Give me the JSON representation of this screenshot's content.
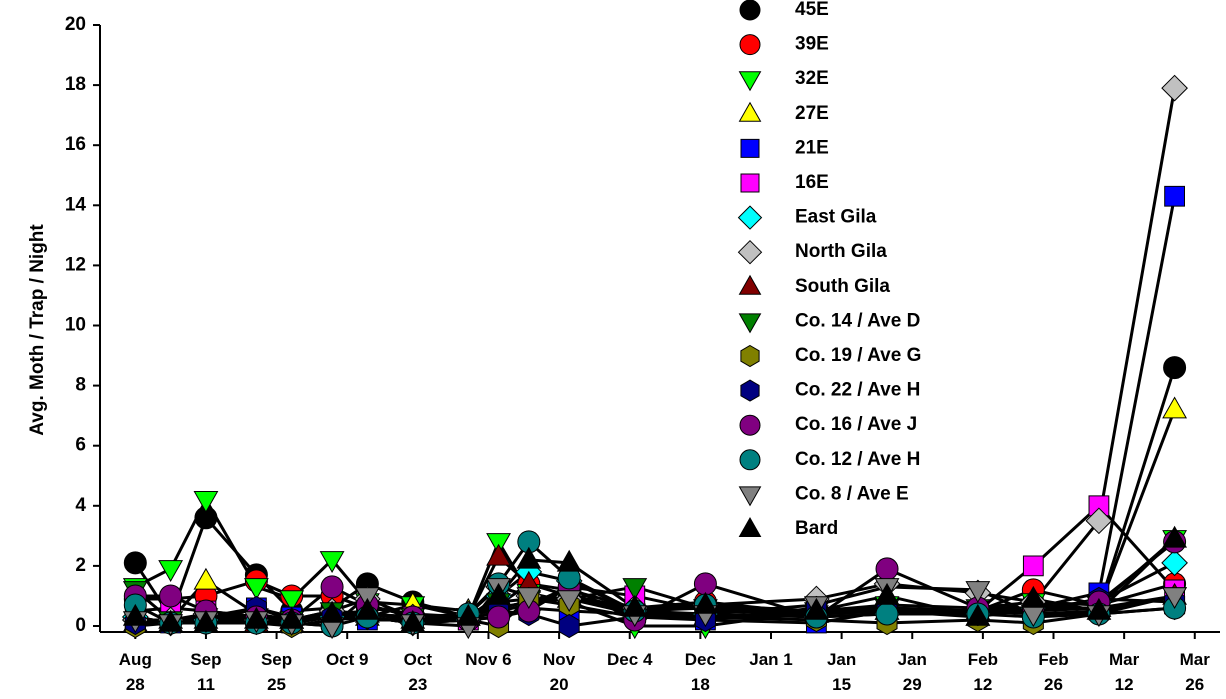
{
  "chart_data": {
    "type": "line",
    "y_label": "Avg. Moth / Trap / Night",
    "x": [
      "08-28",
      "09-04",
      "09-11",
      "09-21",
      "09-28",
      "10-06",
      "10-13",
      "10-22",
      "11-02",
      "11-08",
      "11-14",
      "11-22",
      "12-05",
      "12-19",
      "01-10",
      "01-24",
      "02-11",
      "02-22",
      "03-07",
      "03-22"
    ],
    "xlim": [
      "08-21",
      "03-31"
    ],
    "xticks": [
      {
        "value": "08-28",
        "label": "Aug 28"
      },
      {
        "value": "09-11",
        "label": "Sep 11"
      },
      {
        "value": "09-25",
        "label": "Sep 25"
      },
      {
        "value": "10-09",
        "label": "Oct 9"
      },
      {
        "value": "10-23",
        "label": "Oct 23"
      },
      {
        "value": "11-06",
        "label": "Nov 6"
      },
      {
        "value": "11-20",
        "label": "Nov 20"
      },
      {
        "value": "12-04",
        "label": "Dec 4"
      },
      {
        "value": "12-18",
        "label": "Dec 18"
      },
      {
        "value": "01-01",
        "label": "Jan 1"
      },
      {
        "value": "01-15",
        "label": "Jan 15"
      },
      {
        "value": "01-29",
        "label": "Jan 29"
      },
      {
        "value": "02-12",
        "label": "Feb 12"
      },
      {
        "value": "02-26",
        "label": "Feb 26"
      },
      {
        "value": "03-12",
        "label": "Mar 12"
      },
      {
        "value": "03-26",
        "label": "Mar 26"
      }
    ],
    "ylim": [
      -0.2,
      20
    ],
    "yticks": [
      0,
      2,
      4,
      6,
      8,
      10,
      12,
      14,
      16,
      18,
      20
    ],
    "line_color": "#000000",
    "series": [
      {
        "name": "45E",
        "color": "#000000",
        "marker": "circle",
        "values": [
          2.1,
          0.3,
          3.6,
          1.7,
          0.5,
          0.6,
          1.4,
          0.8,
          0.3,
          0.6,
          0.8,
          0.9,
          0.5,
          0.6,
          0.5,
          0.6,
          0.4,
          0.5,
          0.6,
          8.6
        ]
      },
      {
        "name": "39E",
        "color": "#ff0000",
        "marker": "circle",
        "values": [
          0.9,
          0.9,
          1.0,
          1.5,
          1.0,
          1.0,
          0.6,
          0.4,
          0.3,
          0.7,
          1.4,
          1.2,
          0.6,
          0.8,
          0.4,
          0.6,
          0.5,
          1.2,
          0.7,
          1.4
        ]
      },
      {
        "name": "32E",
        "color": "#00ff00",
        "marker": "triangle-down",
        "values": [
          1.3,
          1.9,
          4.2,
          1.3,
          0.9,
          2.2,
          0.8,
          0.7,
          0.3,
          2.8,
          1.1,
          0.8,
          0.0,
          0.0,
          0.5,
          0.7,
          0.6,
          0.8,
          0.7,
          2.9
        ]
      },
      {
        "name": "27E",
        "color": "#ffff00",
        "marker": "triangle-up",
        "values": [
          0.1,
          0.2,
          1.5,
          0.4,
          0.2,
          0.5,
          0.3,
          0.7,
          0.5,
          0.6,
          0.8,
          0.9,
          0.5,
          0.3,
          0.4,
          0.5,
          0.3,
          0.6,
          0.6,
          7.2
        ]
      },
      {
        "name": "21E",
        "color": "#0000ff",
        "marker": "square",
        "values": [
          0.2,
          0.1,
          0.3,
          0.6,
          0.3,
          0.3,
          0.2,
          0.2,
          0.2,
          0.3,
          0.6,
          0.5,
          0.4,
          0.2,
          0.1,
          0.5,
          0.4,
          0.6,
          1.1,
          14.3
        ]
      },
      {
        "name": "16E",
        "color": "#ff00ff",
        "marker": "square",
        "values": [
          0.5,
          0.6,
          0.5,
          0.3,
          0.1,
          0.4,
          0.4,
          0.3,
          0.2,
          0.5,
          0.7,
          1.3,
          1.0,
          0.5,
          0.4,
          0.5,
          0.5,
          2.0,
          4.0,
          1.2
        ]
      },
      {
        "name": "East Gila",
        "color": "#00ffff",
        "marker": "diamond",
        "values": [
          0.3,
          0.1,
          0.2,
          0.2,
          0.1,
          0.3,
          0.3,
          0.1,
          0.2,
          1.0,
          1.8,
          1.5,
          0.5,
          0.4,
          0.3,
          0.4,
          0.4,
          0.6,
          0.8,
          2.1
        ]
      },
      {
        "name": "North Gila",
        "color": "#c0c0c0",
        "marker": "diamond",
        "values": [
          0.2,
          0.2,
          0.4,
          0.2,
          0.1,
          0.5,
          0.9,
          0.3,
          0.4,
          1.3,
          1.0,
          0.9,
          0.6,
          0.7,
          0.9,
          1.4,
          1.1,
          0.8,
          3.5,
          17.9
        ]
      },
      {
        "name": "South Gila",
        "color": "#800000",
        "marker": "triangle-up",
        "values": [
          0.1,
          0.1,
          0.2,
          0.1,
          0.1,
          0.4,
          0.4,
          0.2,
          0.3,
          2.3,
          1.4,
          1.0,
          0.6,
          0.6,
          0.4,
          0.5,
          0.5,
          0.6,
          0.6,
          1.0
        ]
      },
      {
        "name": "Co. 14 / Ave D",
        "color": "#008000",
        "marker": "triangle-down",
        "values": [
          1.2,
          0.2,
          0.3,
          0.3,
          0.2,
          0.5,
          0.4,
          0.3,
          0.3,
          0.8,
          0.9,
          0.9,
          1.3,
          0.6,
          0.4,
          0.6,
          0.5,
          0.4,
          0.5,
          1.0
        ]
      },
      {
        "name": "Co. 19 / Ave G",
        "color": "#808000",
        "marker": "hexagon",
        "values": [
          0.0,
          0.1,
          0.1,
          0.1,
          0.0,
          0.2,
          0.3,
          0.1,
          0.2,
          0.0,
          0.9,
          0.7,
          0.3,
          0.3,
          0.2,
          0.1,
          0.2,
          0.1,
          0.4,
          0.6
        ]
      },
      {
        "name": "Co. 22 / Ave H",
        "color": "#000080",
        "marker": "hexagon",
        "values": [
          0.1,
          0.1,
          0.1,
          0.6,
          0.2,
          0.3,
          0.3,
          0.1,
          0.2,
          0.5,
          0.4,
          0.0,
          0.3,
          0.2,
          0.6,
          0.5,
          0.4,
          0.5,
          0.9,
          0.8
        ]
      },
      {
        "name": "Co. 16 / Ave J",
        "color": "#800080",
        "marker": "circle",
        "values": [
          1.0,
          1.0,
          0.5,
          0.3,
          0.2,
          1.3,
          0.7,
          0.3,
          0.2,
          0.3,
          0.5,
          1.3,
          0.2,
          1.4,
          0.3,
          1.9,
          0.6,
          0.6,
          0.8,
          2.8
        ]
      },
      {
        "name": "Co. 12 / Ave H",
        "color": "#008080",
        "marker": "circle",
        "values": [
          0.7,
          0.1,
          0.1,
          0.1,
          0.1,
          0.0,
          0.3,
          0.1,
          0.4,
          1.4,
          2.8,
          1.6,
          0.5,
          0.7,
          0.3,
          0.4,
          0.4,
          0.3,
          0.4,
          0.6
        ]
      },
      {
        "name": "Co. 8 / Ave E",
        "color": "#808080",
        "marker": "triangle-down",
        "values": [
          0.2,
          0.1,
          0.2,
          0.2,
          0.1,
          0.0,
          1.0,
          0.1,
          0.0,
          1.3,
          1.0,
          0.9,
          0.4,
          0.4,
          0.7,
          1.3,
          1.2,
          0.4,
          0.4,
          1.0
        ]
      },
      {
        "name": "Bard",
        "color": "#000000",
        "marker": "triangle-up",
        "values": [
          0.3,
          0.1,
          0.1,
          0.2,
          0.2,
          0.4,
          0.5,
          0.1,
          0.3,
          1.0,
          2.2,
          2.1,
          0.6,
          0.7,
          0.5,
          1.0,
          0.3,
          0.9,
          0.5,
          2.9
        ]
      }
    ]
  }
}
